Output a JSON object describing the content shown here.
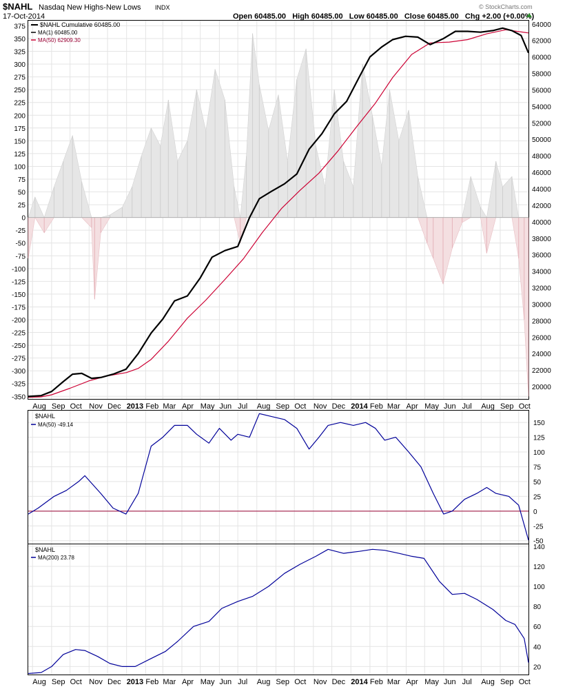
{
  "header": {
    "symbol": "$NAHL",
    "description": "Nasdaq New Highs-New Lows",
    "exchange": "INDX",
    "date": "17-Oct-2014",
    "ohlc": "Open 60485.00   High 60485.00   Low 60485.00   Close 60485.00   Chg +2.00 (+0.00%)",
    "watermark": "© StockCharts.com"
  },
  "colors": {
    "cumulative": "#000000",
    "ma50_price": "#cc0033",
    "daily_pos_fill": "#e6e6e6",
    "daily_neg_fill": "#f4dfe1",
    "ma_indicator": "#000099",
    "zero_line": "#990033",
    "grid": "#e4e4e4"
  },
  "x_axis_labels": [
    "Aug",
    "Sep",
    "Oct",
    "Nov",
    "Dec",
    "2013",
    "Feb",
    "Mar",
    "Apr",
    "May",
    "Jun",
    "Jul",
    "Aug",
    "Sep",
    "Oct",
    "Nov",
    "Dec",
    "2014",
    "Feb",
    "Mar",
    "Apr",
    "May",
    "Jun",
    "Jul",
    "Aug",
    "Sep",
    "Oct"
  ],
  "chart_data": [
    {
      "type": "line",
      "panel": "main",
      "legend": [
        "$NAHL Cumulative 60485.00",
        "MA(1) 60485.00",
        "MA(50) 62909.30"
      ],
      "x_range": [
        "2012-07-25",
        "2014-10-17"
      ],
      "left_axis": {
        "ylim": [
          -355,
          385
        ],
        "ticks": [
          375,
          350,
          325,
          300,
          275,
          250,
          225,
          200,
          175,
          150,
          125,
          100,
          75,
          50,
          25,
          0,
          -25,
          -50,
          -75,
          -100,
          -125,
          -150,
          -175,
          -200,
          -225,
          -250,
          -275,
          -300,
          -325,
          -350
        ]
      },
      "right_axis": {
        "ylim": [
          18500,
          64400
        ],
        "ticks": [
          64000,
          62000,
          60000,
          58000,
          56000,
          54000,
          52000,
          50000,
          48000,
          46000,
          44000,
          42000,
          40000,
          38000,
          36000,
          34000,
          32000,
          30000,
          28000,
          26000,
          24000,
          22000,
          20000
        ]
      },
      "series": [
        {
          "name": "MA(1) 60485.00",
          "axis": "right",
          "x": [
            "2012-07-25",
            "2012-08-15",
            "2012-09-01",
            "2012-09-20",
            "2012-10-05",
            "2012-10-20",
            "2012-11-05",
            "2012-11-20",
            "2012-12-10",
            "2012-12-31",
            "2013-01-20",
            "2013-02-10",
            "2013-03-01",
            "2013-03-20",
            "2013-04-10",
            "2013-05-01",
            "2013-05-20",
            "2013-06-10",
            "2013-07-01",
            "2013-07-20",
            "2013-08-05",
            "2013-08-25",
            "2013-09-15",
            "2013-10-05",
            "2013-10-25",
            "2013-11-15",
            "2013-12-05",
            "2013-12-25",
            "2014-01-15",
            "2014-02-01",
            "2014-02-20",
            "2014-03-10",
            "2014-03-31",
            "2014-04-20",
            "2014-05-10",
            "2014-05-31",
            "2014-06-20",
            "2014-07-10",
            "2014-07-31",
            "2014-08-20",
            "2014-09-05",
            "2014-09-20",
            "2014-10-05",
            "2014-10-17"
          ],
          "values": [
            18800,
            18900,
            19400,
            20600,
            21500,
            21600,
            21000,
            21100,
            21500,
            22100,
            24000,
            26500,
            28200,
            30400,
            31000,
            33200,
            35700,
            36500,
            37000,
            40500,
            42800,
            43700,
            44600,
            45800,
            48800,
            50700,
            53100,
            54600,
            57600,
            60000,
            61200,
            62100,
            62500,
            62400,
            61500,
            62200,
            63100,
            63100,
            63000,
            63200,
            63500,
            63200,
            62600,
            60485
          ]
        },
        {
          "name": "MA(50) 62909.30",
          "axis": "right",
          "x": [
            "2012-07-25",
            "2012-08-15",
            "2012-09-01",
            "2012-10-01",
            "2012-11-01",
            "2012-12-01",
            "2013-01-01",
            "2013-01-20",
            "2013-02-10",
            "2013-03-10",
            "2013-04-10",
            "2013-05-10",
            "2013-06-10",
            "2013-07-10",
            "2013-08-10",
            "2013-09-10",
            "2013-10-10",
            "2013-11-10",
            "2013-12-10",
            "2014-01-10",
            "2014-02-10",
            "2014-03-10",
            "2014-04-10",
            "2014-05-10",
            "2014-06-10",
            "2014-07-10",
            "2014-08-10",
            "2014-09-10",
            "2014-10-17"
          ],
          "values": [
            18700,
            18750,
            19000,
            19800,
            20700,
            21300,
            21700,
            22200,
            23300,
            25500,
            28300,
            30500,
            33000,
            35500,
            38700,
            41600,
            43800,
            45900,
            48500,
            51500,
            54400,
            57500,
            60300,
            61700,
            61800,
            62100,
            62800,
            63300,
            62909
          ]
        }
      ],
      "bars": {
        "name": "$NAHL daily (area)",
        "axis": "left",
        "x": [
          "2012-07-25",
          "2012-08-05",
          "2012-08-20",
          "2012-09-05",
          "2012-09-20",
          "2012-10-05",
          "2012-10-20",
          "2012-11-05",
          "2012-11-10",
          "2012-11-20",
          "2012-12-05",
          "2012-12-25",
          "2013-01-10",
          "2013-01-25",
          "2013-02-10",
          "2013-02-25",
          "2013-03-10",
          "2013-03-25",
          "2013-04-10",
          "2013-04-25",
          "2013-05-10",
          "2013-05-25",
          "2013-06-10",
          "2013-06-25",
          "2013-07-05",
          "2013-07-15",
          "2013-07-25",
          "2013-08-05",
          "2013-08-20",
          "2013-09-05",
          "2013-09-20",
          "2013-10-05",
          "2013-10-20",
          "2013-11-05",
          "2013-11-20",
          "2013-12-05",
          "2013-12-20",
          "2014-01-05",
          "2014-01-20",
          "2014-02-05",
          "2014-02-20",
          "2014-03-05",
          "2014-03-20",
          "2014-04-05",
          "2014-04-20",
          "2014-05-05",
          "2014-05-15",
          "2014-05-31",
          "2014-06-15",
          "2014-07-01",
          "2014-07-15",
          "2014-07-31",
          "2014-08-10",
          "2014-08-25",
          "2014-09-05",
          "2014-09-20",
          "2014-10-01",
          "2014-10-10",
          "2014-10-17"
        ],
        "values": [
          -80,
          40,
          -30,
          60,
          110,
          160,
          70,
          -20,
          -160,
          -30,
          5,
          20,
          60,
          120,
          175,
          140,
          230,
          110,
          150,
          250,
          170,
          290,
          230,
          60,
          -50,
          120,
          360,
          260,
          170,
          240,
          110,
          270,
          330,
          140,
          60,
          250,
          110,
          60,
          300,
          200,
          100,
          250,
          150,
          210,
          80,
          -50,
          -80,
          -130,
          -60,
          -10,
          80,
          20,
          -70,
          110,
          60,
          80,
          -80,
          -200,
          -350
        ]
      }
    },
    {
      "type": "line",
      "panel": "ma50",
      "legend": [
        "$NAHL",
        "MA(50) -49.14"
      ],
      "ylim": [
        -55,
        170
      ],
      "ticks": [
        150,
        125,
        100,
        75,
        50,
        25,
        0,
        -25,
        -50
      ],
      "zero_line": 0,
      "series": [
        {
          "name": "MA(50) -49.14",
          "x": [
            "2012-07-25",
            "2012-08-10",
            "2012-09-05",
            "2012-09-25",
            "2012-10-15",
            "2012-10-25",
            "2012-11-20",
            "2012-12-10",
            "2012-12-31",
            "2013-01-20",
            "2013-02-10",
            "2013-03-01",
            "2013-03-20",
            "2013-04-10",
            "2013-04-25",
            "2013-05-15",
            "2013-06-01",
            "2013-06-20",
            "2013-07-01",
            "2013-07-20",
            "2013-08-05",
            "2013-08-25",
            "2013-09-15",
            "2013-10-05",
            "2013-10-25",
            "2013-11-10",
            "2013-11-25",
            "2013-12-15",
            "2014-01-05",
            "2014-01-25",
            "2014-02-10",
            "2014-02-25",
            "2014-03-15",
            "2014-04-05",
            "2014-04-25",
            "2014-05-15",
            "2014-06-01",
            "2014-06-15",
            "2014-07-05",
            "2014-07-25",
            "2014-08-10",
            "2014-08-25",
            "2014-09-15",
            "2014-10-01",
            "2014-10-17"
          ],
          "values": [
            -5,
            5,
            25,
            35,
            50,
            60,
            30,
            5,
            -5,
            30,
            110,
            125,
            145,
            145,
            130,
            115,
            140,
            120,
            130,
            125,
            165,
            160,
            155,
            140,
            105,
            125,
            145,
            150,
            145,
            150,
            140,
            120,
            125,
            100,
            75,
            30,
            -5,
            0,
            20,
            30,
            40,
            30,
            25,
            10,
            -49
          ]
        }
      ]
    },
    {
      "type": "line",
      "panel": "ma200",
      "legend": [
        "$NAHL",
        "MA(200) 23.78"
      ],
      "ylim": [
        12,
        142
      ],
      "ticks": [
        140,
        120,
        100,
        80,
        60,
        40,
        20
      ],
      "series": [
        {
          "name": "MA(200) 23.78",
          "x": [
            "2012-07-25",
            "2012-08-15",
            "2012-09-01",
            "2012-09-20",
            "2012-10-10",
            "2012-10-25",
            "2012-11-15",
            "2012-12-05",
            "2012-12-25",
            "2013-01-15",
            "2013-02-10",
            "2013-03-05",
            "2013-03-25",
            "2013-04-20",
            "2013-05-15",
            "2013-06-05",
            "2013-07-01",
            "2013-07-25",
            "2013-08-20",
            "2013-09-15",
            "2013-10-10",
            "2013-11-05",
            "2013-11-25",
            "2013-12-20",
            "2014-01-15",
            "2014-02-05",
            "2014-02-25",
            "2014-03-20",
            "2014-04-10",
            "2014-04-30",
            "2014-05-25",
            "2014-06-15",
            "2014-07-05",
            "2014-07-25",
            "2014-08-20",
            "2014-09-10",
            "2014-09-25",
            "2014-10-10",
            "2014-10-17"
          ],
          "values": [
            13,
            14,
            20,
            32,
            37,
            36,
            30,
            23,
            20,
            20,
            28,
            35,
            45,
            60,
            65,
            78,
            85,
            90,
            100,
            113,
            122,
            130,
            137,
            133,
            135,
            137,
            136,
            133,
            130,
            128,
            105,
            92,
            93,
            87,
            77,
            66,
            62,
            48,
            24
          ]
        }
      ]
    }
  ]
}
